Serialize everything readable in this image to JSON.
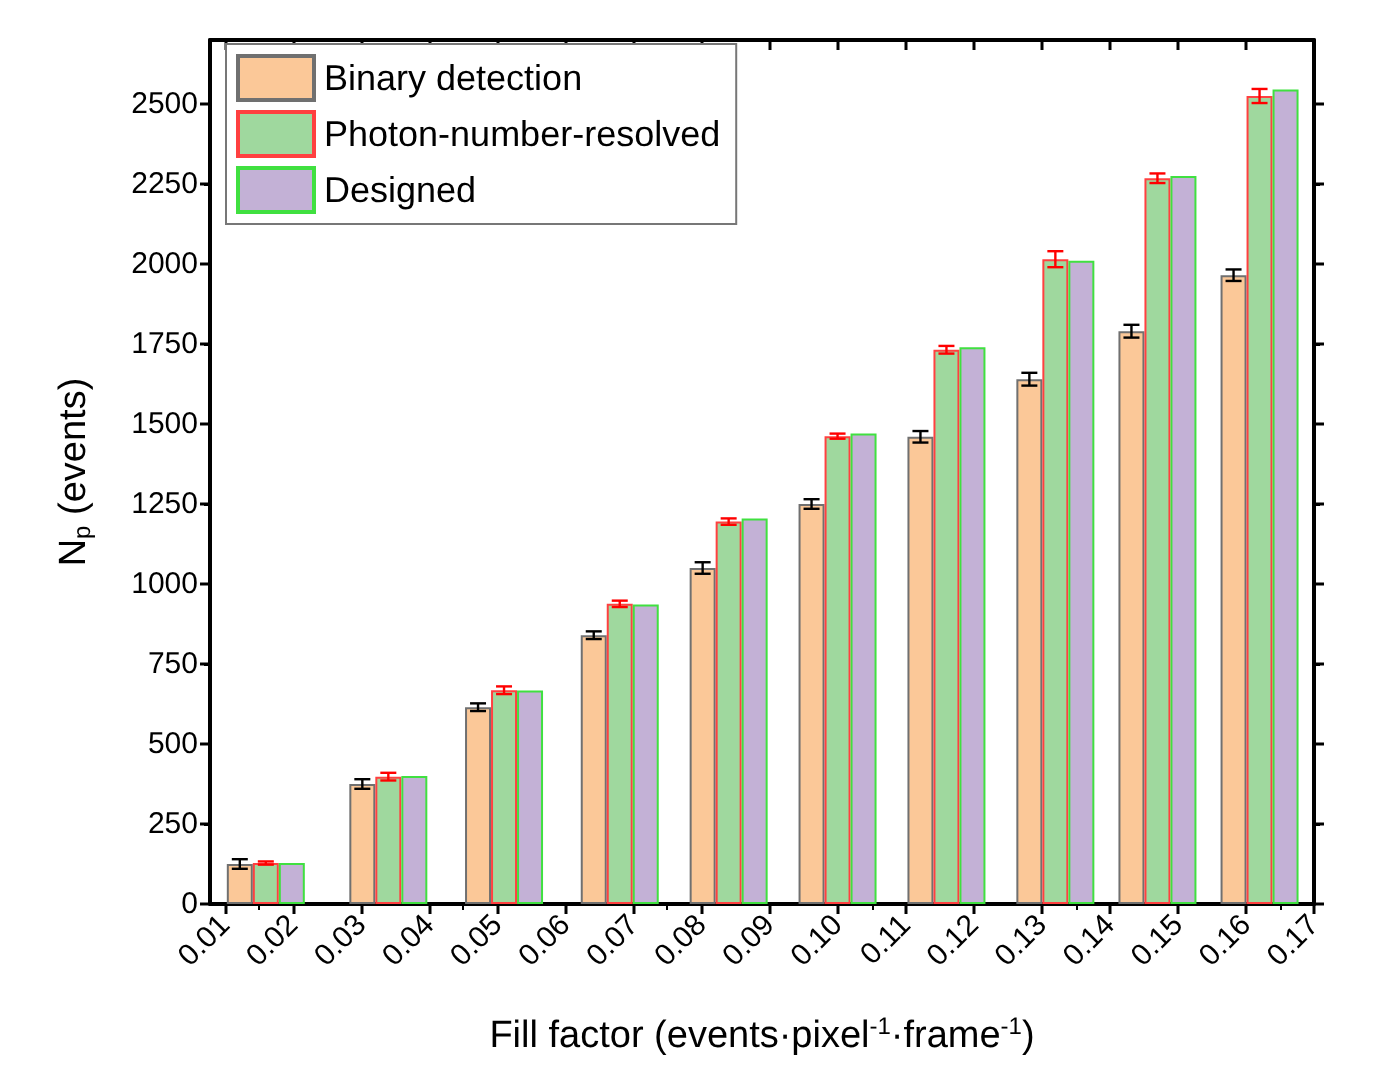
{
  "chart_data": {
    "type": "bar",
    "xlabel": "Fill factor (events·pixel$^{-1}$·frame$^{-1}$)",
    "ylabel": "N$_{p}$ (events)",
    "x": [
      0.016,
      0.034,
      0.051,
      0.068,
      0.084,
      0.1,
      0.116,
      0.132,
      0.147,
      0.162
    ],
    "series": [
      {
        "name": "Binary detection",
        "color": "#fbc898",
        "values": [
          125,
          375,
          615,
          840,
          1050,
          1250,
          1460,
          1640,
          1790,
          1965
        ],
        "errors": [
          15,
          15,
          12,
          12,
          18,
          15,
          18,
          20,
          20,
          18
        ]
      },
      {
        "name": "Photon-number-resolved",
        "color": "#9fd89e",
        "values": [
          128,
          398,
          668,
          938,
          1195,
          1462,
          1732,
          2015,
          2268,
          2525
        ],
        "errors": [
          5,
          12,
          12,
          10,
          10,
          8,
          12,
          25,
          15,
          22
        ]
      },
      {
        "name": "Designed",
        "color": "#c3b1d6",
        "values": [
          128,
          400,
          667,
          936,
          1205,
          1470,
          1740,
          2010,
          2275,
          2545
        ]
      }
    ],
    "xlim": [
      0.0078,
      0.17
    ],
    "xticks": [
      {
        "value": 0.01,
        "label": "0.01"
      },
      {
        "value": 0.02,
        "label": "0.02"
      },
      {
        "value": 0.03,
        "label": "0.03"
      },
      {
        "value": 0.04,
        "label": "0.04"
      },
      {
        "value": 0.05,
        "label": "0.05"
      },
      {
        "value": 0.06,
        "label": "0.06"
      },
      {
        "value": 0.07,
        "label": "0.07"
      },
      {
        "value": 0.08,
        "label": "0.08"
      },
      {
        "value": 0.09,
        "label": "0.09"
      },
      {
        "value": 0.1,
        "label": "0.10"
      },
      {
        "value": 0.11,
        "label": "0.11"
      },
      {
        "value": 0.12,
        "label": "0.12"
      },
      {
        "value": 0.13,
        "label": "0.13"
      },
      {
        "value": 0.14,
        "label": "0.14"
      },
      {
        "value": 0.15,
        "label": "0.15"
      },
      {
        "value": 0.16,
        "label": "0.16"
      },
      {
        "value": 0.17,
        "label": "0.17"
      }
    ],
    "ylim": [
      0,
      2700
    ],
    "yticks": [
      0,
      250,
      500,
      750,
      1000,
      1250,
      1500,
      1750,
      2000,
      2250,
      2500
    ],
    "grid": false,
    "legend": "top left"
  }
}
